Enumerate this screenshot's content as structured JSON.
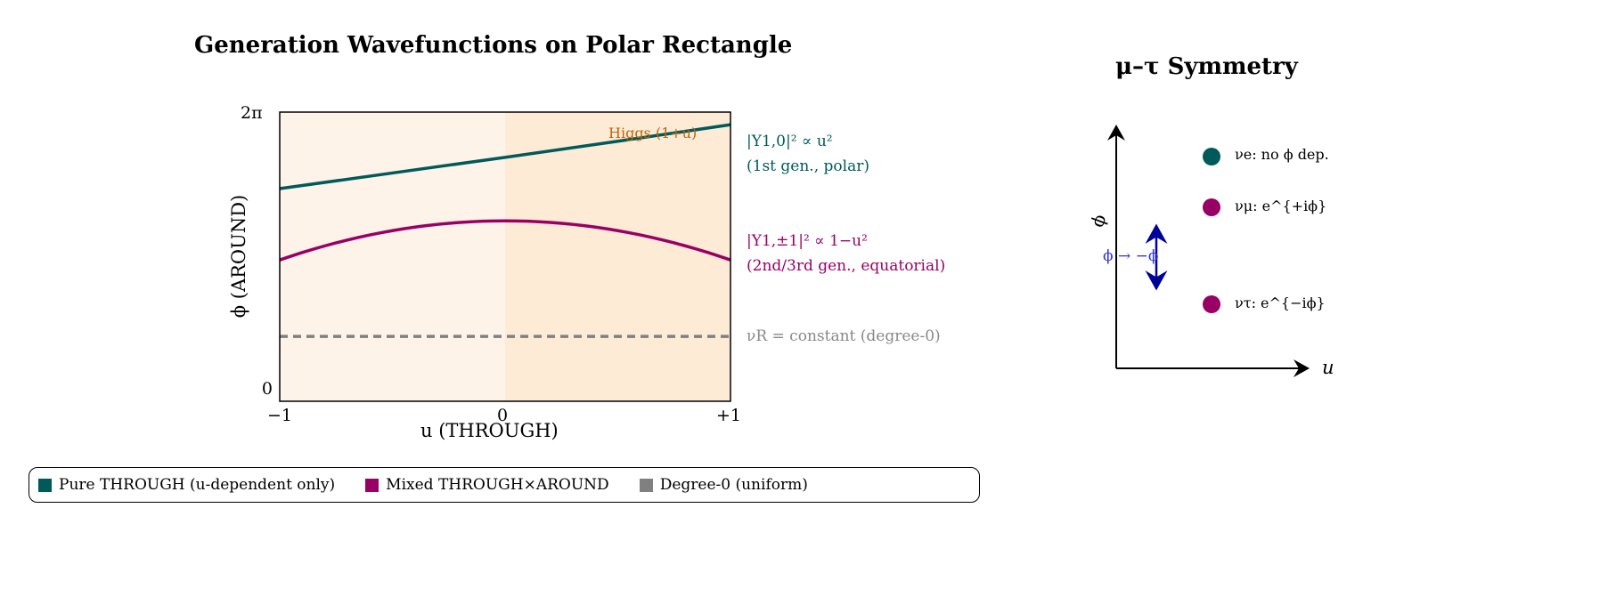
{
  "chart_data": {
    "type": "line",
    "title": "Generation Wavefunctions on Polar Rectangle",
    "xlabel": "u (THROUGH)",
    "ylabel": "ϕ (AROUND)",
    "xlim": [
      -1,
      1
    ],
    "ylim": [
      0,
      6.2832
    ],
    "xticks": [
      "−1",
      "0",
      "+1"
    ],
    "yticks": [
      "0",
      "2π"
    ],
    "regions": [
      {
        "range": [
          -1,
          0
        ],
        "color": "#fdf3e8"
      },
      {
        "range": [
          0,
          1
        ],
        "color": "#fdebd6",
        "label": "Higgs (1+u)",
        "label_color": "#c0640a"
      }
    ],
    "series": [
      {
        "name": "|Y1,0|² ∝ u²",
        "sub": "(1st gen., polar)",
        "color": "#005a5a",
        "style": "solid",
        "x": [
          -1,
          -0.5,
          0,
          0.5,
          1
        ],
        "y": [
          4.62,
          4.96,
          5.3,
          5.65,
          6.01
        ]
      },
      {
        "name": "|Y1,±1|² ∝ 1−u²",
        "sub": "(2nd/3rd gen., equatorial)",
        "color": "#990066",
        "style": "solid",
        "x": [
          -1,
          -0.5,
          0,
          0.5,
          1
        ],
        "y": [
          3.07,
          3.71,
          3.92,
          3.71,
          3.07
        ]
      },
      {
        "name": "νR = constant (degree-0)",
        "sub": "",
        "color": "#808080",
        "style": "dashed",
        "x": [
          -1,
          1
        ],
        "y": [
          1.41,
          1.41
        ]
      }
    ]
  },
  "legend": {
    "items": [
      {
        "label": "Pure THROUGH (u-dependent only)",
        "color": "#005a5a"
      },
      {
        "label": "Mixed THROUGH×AROUND",
        "color": "#990066"
      },
      {
        "label": "Degree-0 (uniform)",
        "color": "#808080"
      }
    ]
  },
  "symmetry": {
    "title": "μ–τ Symmetry",
    "axis_x": "u",
    "axis_y": "ϕ",
    "transform": "ϕ → −ϕ",
    "transform_color": "#00009a",
    "points": [
      {
        "label": "νe: no ϕ dep.",
        "color": "#005a5a"
      },
      {
        "label": "νμ: e^{+iϕ}",
        "color": "#990066"
      },
      {
        "label": "ντ: e^{−iϕ}",
        "color": "#990066"
      }
    ]
  }
}
